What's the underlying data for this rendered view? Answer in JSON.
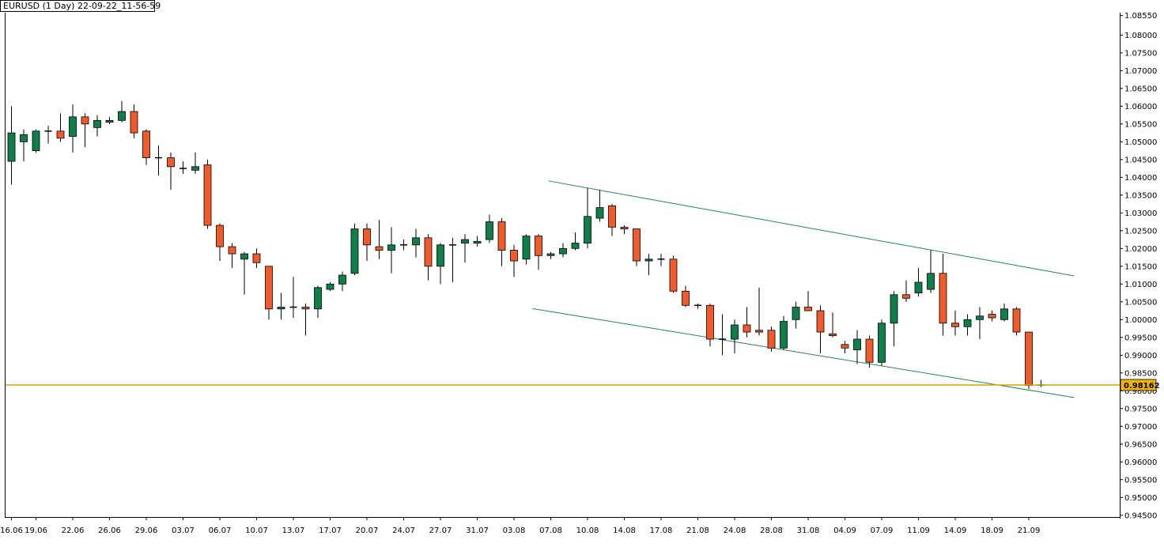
{
  "chart_data": {
    "type": "candlestick",
    "title": "EURUSD (1 Day) 22-09-22_11-56-59",
    "ylim": [
      0.9445,
      1.0863
    ],
    "y_ticks": [
      "1.08550",
      "1.08000",
      "1.07500",
      "1.07000",
      "1.06500",
      "1.06000",
      "1.05500",
      "1.05000",
      "1.04500",
      "1.04000",
      "1.03500",
      "1.03000",
      "1.02500",
      "1.02000",
      "1.01500",
      "1.01000",
      "1.00500",
      "1.00000",
      "0.99500",
      "0.99000",
      "0.98500",
      "0.98000",
      "0.97500",
      "0.97000",
      "0.96500",
      "0.96000",
      "0.95500",
      "0.95000",
      "0.94500"
    ],
    "x_ticks": [
      {
        "label": "16.06",
        "index": 0
      },
      {
        "label": "19.06",
        "index": 2
      },
      {
        "label": "22.06",
        "index": 5
      },
      {
        "label": "26.06",
        "index": 8
      },
      {
        "label": "29.06",
        "index": 11
      },
      {
        "label": "03.07",
        "index": 14
      },
      {
        "label": "06.07",
        "index": 17
      },
      {
        "label": "10.07",
        "index": 20
      },
      {
        "label": "13.07",
        "index": 23
      },
      {
        "label": "17.07",
        "index": 26
      },
      {
        "label": "20.07",
        "index": 29
      },
      {
        "label": "24.07",
        "index": 32
      },
      {
        "label": "27.07",
        "index": 35
      },
      {
        "label": "31.07",
        "index": 38
      },
      {
        "label": "03.08",
        "index": 41
      },
      {
        "label": "07.08",
        "index": 44
      },
      {
        "label": "10.08",
        "index": 47
      },
      {
        "label": "14.08",
        "index": 50
      },
      {
        "label": "17.08",
        "index": 53
      },
      {
        "label": "21.08",
        "index": 56
      },
      {
        "label": "24.08",
        "index": 59
      },
      {
        "label": "28.08",
        "index": 62
      },
      {
        "label": "31.08",
        "index": 65
      },
      {
        "label": "04.09",
        "index": 68
      },
      {
        "label": "07.09",
        "index": 71
      },
      {
        "label": "11.09",
        "index": 74
      },
      {
        "label": "14.09",
        "index": 77
      },
      {
        "label": "18.09",
        "index": 80
      },
      {
        "label": "21.09",
        "index": 83
      }
    ],
    "candles": [
      {
        "o": 1.0445,
        "h": 1.06,
        "l": 1.038,
        "c": 1.0525
      },
      {
        "o": 1.05,
        "h": 1.0535,
        "l": 1.0445,
        "c": 1.052
      },
      {
        "o": 1.0475,
        "h": 1.0535,
        "l": 1.047,
        "c": 1.053
      },
      {
        "o": 1.053,
        "h": 1.0545,
        "l": 1.0495,
        "c": 1.053
      },
      {
        "o": 1.053,
        "h": 1.058,
        "l": 1.05,
        "c": 1.051
      },
      {
        "o": 1.0515,
        "h": 1.0605,
        "l": 1.047,
        "c": 1.057
      },
      {
        "o": 1.057,
        "h": 1.058,
        "l": 1.0485,
        "c": 1.055
      },
      {
        "o": 1.054,
        "h": 1.0575,
        "l": 1.0515,
        "c": 1.056
      },
      {
        "o": 1.0555,
        "h": 1.057,
        "l": 1.055,
        "c": 1.056
      },
      {
        "o": 1.056,
        "h": 1.0615,
        "l": 1.0555,
        "c": 1.0585
      },
      {
        "o": 1.0585,
        "h": 1.0605,
        "l": 1.051,
        "c": 1.0525
      },
      {
        "o": 1.053,
        "h": 1.0535,
        "l": 1.0435,
        "c": 1.0455
      },
      {
        "o": 1.0455,
        "h": 1.049,
        "l": 1.0405,
        "c": 1.0455
      },
      {
        "o": 1.0455,
        "h": 1.047,
        "l": 1.0365,
        "c": 1.043
      },
      {
        "o": 1.0425,
        "h": 1.0445,
        "l": 1.041,
        "c": 1.0425
      },
      {
        "o": 1.042,
        "h": 1.047,
        "l": 1.041,
        "c": 1.043
      },
      {
        "o": 1.0435,
        "h": 1.045,
        "l": 1.0255,
        "c": 1.0265
      },
      {
        "o": 1.0265,
        "h": 1.027,
        "l": 1.0165,
        "c": 1.0205
      },
      {
        "o": 1.0205,
        "h": 1.0215,
        "l": 1.0145,
        "c": 1.0185
      },
      {
        "o": 1.017,
        "h": 1.019,
        "l": 1.007,
        "c": 1.0185
      },
      {
        "o": 1.0185,
        "h": 1.02,
        "l": 1.0145,
        "c": 1.016
      },
      {
        "o": 1.015,
        "h": 1.015,
        "l": 1.0,
        "c": 1.003
      },
      {
        "o": 1.003,
        "h": 1.0075,
        "l": 1.0,
        "c": 1.0035
      },
      {
        "o": 1.0035,
        "h": 1.012,
        "l": 1.0005,
        "c": 1.0035
      },
      {
        "o": 1.0035,
        "h": 1.0045,
        "l": 0.9955,
        "c": 1.003
      },
      {
        "o": 1.003,
        "h": 1.0095,
        "l": 1.0005,
        "c": 1.009
      },
      {
        "o": 1.0085,
        "h": 1.0105,
        "l": 1.008,
        "c": 1.01
      },
      {
        "o": 1.01,
        "h": 1.0135,
        "l": 1.008,
        "c": 1.0125
      },
      {
        "o": 1.013,
        "h": 1.027,
        "l": 1.0125,
        "c": 1.0255
      },
      {
        "o": 1.0255,
        "h": 1.027,
        "l": 1.0165,
        "c": 1.021
      },
      {
        "o": 1.0205,
        "h": 1.028,
        "l": 1.017,
        "c": 1.0195
      },
      {
        "o": 1.0195,
        "h": 1.026,
        "l": 1.013,
        "c": 1.021
      },
      {
        "o": 1.021,
        "h": 1.0225,
        "l": 1.0195,
        "c": 1.021
      },
      {
        "o": 1.021,
        "h": 1.0255,
        "l": 1.0175,
        "c": 1.023
      },
      {
        "o": 1.023,
        "h": 1.024,
        "l": 1.011,
        "c": 1.015
      },
      {
        "o": 1.015,
        "h": 1.0215,
        "l": 1.01,
        "c": 1.021
      },
      {
        "o": 1.021,
        "h": 1.023,
        "l": 1.0105,
        "c": 1.021
      },
      {
        "o": 1.0215,
        "h": 1.024,
        "l": 1.016,
        "c": 1.0225
      },
      {
        "o": 1.0215,
        "h": 1.0235,
        "l": 1.0205,
        "c": 1.022
      },
      {
        "o": 1.0225,
        "h": 1.0295,
        "l": 1.0215,
        "c": 1.0275
      },
      {
        "o": 1.0275,
        "h": 1.0285,
        "l": 1.015,
        "c": 1.0195
      },
      {
        "o": 1.0195,
        "h": 1.021,
        "l": 1.012,
        "c": 1.0165
      },
      {
        "o": 1.017,
        "h": 1.024,
        "l": 1.0155,
        "c": 1.0235
      },
      {
        "o": 1.0235,
        "h": 1.024,
        "l": 1.014,
        "c": 1.018
      },
      {
        "o": 1.018,
        "h": 1.019,
        "l": 1.017,
        "c": 1.0185
      },
      {
        "o": 1.0185,
        "h": 1.0215,
        "l": 1.0175,
        "c": 1.02
      },
      {
        "o": 1.02,
        "h": 1.0245,
        "l": 1.0195,
        "c": 1.0215
      },
      {
        "o": 1.0215,
        "h": 1.037,
        "l": 1.02,
        "c": 1.029
      },
      {
        "o": 1.0285,
        "h": 1.0365,
        "l": 1.0275,
        "c": 1.0315
      },
      {
        "o": 1.032,
        "h": 1.0325,
        "l": 1.0235,
        "c": 1.026
      },
      {
        "o": 1.026,
        "h": 1.0265,
        "l": 1.024,
        "c": 1.0255
      },
      {
        "o": 1.0255,
        "h": 1.0255,
        "l": 1.015,
        "c": 1.0165
      },
      {
        "o": 1.0165,
        "h": 1.0185,
        "l": 1.0125,
        "c": 1.017
      },
      {
        "o": 1.017,
        "h": 1.0185,
        "l": 1.015,
        "c": 1.017
      },
      {
        "o": 1.017,
        "h": 1.018,
        "l": 1.0075,
        "c": 1.008
      },
      {
        "o": 1.008,
        "h": 1.0095,
        "l": 1.0035,
        "c": 1.004
      },
      {
        "o": 1.004,
        "h": 1.0045,
        "l": 1.003,
        "c": 1.004
      },
      {
        "o": 1.004,
        "h": 1.0045,
        "l": 0.9925,
        "c": 0.9945
      },
      {
        "o": 0.9945,
        "h": 1.0015,
        "l": 0.99,
        "c": 0.9945
      },
      {
        "o": 0.9945,
        "h": 1.0,
        "l": 0.9905,
        "c": 0.9985
      },
      {
        "o": 0.9985,
        "h": 1.0035,
        "l": 0.995,
        "c": 0.9965
      },
      {
        "o": 0.997,
        "h": 1.009,
        "l": 0.9955,
        "c": 0.9965
      },
      {
        "o": 0.997,
        "h": 0.998,
        "l": 0.991,
        "c": 0.992
      },
      {
        "o": 0.992,
        "h": 1.001,
        "l": 0.9915,
        "c": 0.9995
      },
      {
        "o": 1.0,
        "h": 1.005,
        "l": 0.9975,
        "c": 1.0035
      },
      {
        "o": 1.0035,
        "h": 1.008,
        "l": 1.0025,
        "c": 1.0025
      },
      {
        "o": 1.0025,
        "h": 1.004,
        "l": 0.9905,
        "c": 0.9965
      },
      {
        "o": 0.996,
        "h": 1.002,
        "l": 0.995,
        "c": 0.9955
      },
      {
        "o": 0.993,
        "h": 0.994,
        "l": 0.9905,
        "c": 0.992
      },
      {
        "o": 0.9915,
        "h": 0.997,
        "l": 0.9875,
        "c": 0.9945
      },
      {
        "o": 0.9945,
        "h": 0.9955,
        "l": 0.9865,
        "c": 0.988
      },
      {
        "o": 0.988,
        "h": 1.0,
        "l": 0.987,
        "c": 0.999
      },
      {
        "o": 0.999,
        "h": 1.008,
        "l": 0.9925,
        "c": 1.007
      },
      {
        "o": 1.007,
        "h": 1.011,
        "l": 1.005,
        "c": 1.006
      },
      {
        "o": 1.0075,
        "h": 1.0145,
        "l": 1.0065,
        "c": 1.0105
      },
      {
        "o": 1.0085,
        "h": 1.0195,
        "l": 1.0075,
        "c": 1.013
      },
      {
        "o": 1.013,
        "h": 1.0185,
        "l": 0.9955,
        "c": 0.999
      },
      {
        "o": 0.999,
        "h": 1.0025,
        "l": 0.9955,
        "c": 0.998
      },
      {
        "o": 0.998,
        "h": 1.0015,
        "l": 0.9955,
        "c": 1.0
      },
      {
        "o": 1.0,
        "h": 1.0035,
        "l": 0.9945,
        "c": 1.001
      },
      {
        "o": 1.0015,
        "h": 1.0025,
        "l": 0.9995,
        "c": 1.0005
      },
      {
        "o": 1.0,
        "h": 1.0045,
        "l": 0.9995,
        "c": 1.003
      },
      {
        "o": 1.003,
        "h": 1.0035,
        "l": 0.9955,
        "c": 0.9965
      },
      {
        "o": 0.9965,
        "h": 0.9965,
        "l": 0.9805,
        "c": 0.9815
      },
      {
        "o": 0.9815,
        "h": 0.983,
        "l": 0.981,
        "c": 0.9816
      }
    ],
    "trendlines": [
      {
        "from": {
          "index": 43.8,
          "price": 1.039
        },
        "to": {
          "index": 86.7,
          "price": 1.0123
        }
      },
      {
        "from": {
          "index": 42.5,
          "price": 1.0031
        },
        "to": {
          "index": 86.7,
          "price": 0.9781
        }
      }
    ],
    "hline": {
      "price": 0.98162,
      "label": "0.98162"
    },
    "colors": {
      "up": "#0f7f4a",
      "down": "#f15a2b",
      "trend": "#1f8a4a",
      "hline": "#d9a300",
      "marker_bg": "#f5b400",
      "axis": "#000000"
    }
  }
}
